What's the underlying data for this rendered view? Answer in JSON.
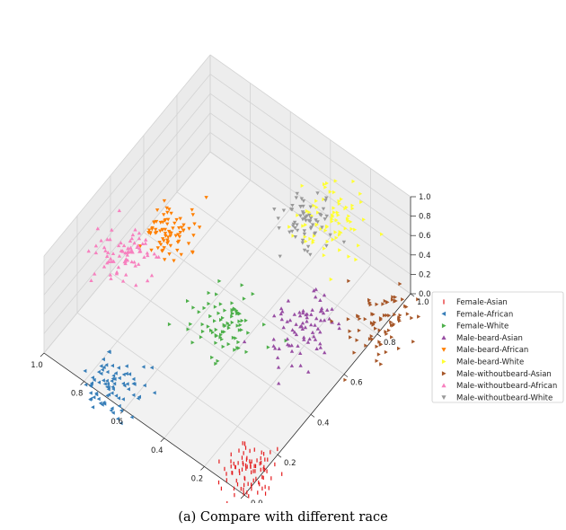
{
  "caption": "(a) Compare with different race",
  "chart_data": {
    "type": "scatter",
    "projection": "3d",
    "xlim": [
      0,
      1
    ],
    "ylim": [
      0,
      1
    ],
    "zlim": [
      0,
      1
    ],
    "x_ticks": [
      "0.0",
      "0.2",
      "0.4",
      "0.6",
      "0.8",
      "1.0"
    ],
    "y_ticks": [
      "0.0",
      "0.2",
      "0.4",
      "0.6",
      "0.8",
      "1.0"
    ],
    "z_ticks": [
      "0.0",
      "0.2",
      "0.4",
      "0.6",
      "0.8",
      "1.0"
    ],
    "legend_position": "right",
    "series": [
      {
        "name": "Female-Asian",
        "color": "#e41a1c",
        "marker": "tick",
        "center": [
          0.05,
          0.08
        ],
        "spread": 0.1,
        "count": 90
      },
      {
        "name": "Female-African",
        "color": "#377eb8",
        "marker": "triangle-left",
        "center": [
          0.7,
          0.05
        ],
        "spread": 0.12,
        "count": 80
      },
      {
        "name": "Female-White",
        "color": "#4daf4a",
        "marker": "triangle-right",
        "center": [
          0.5,
          0.5
        ],
        "spread": 0.12,
        "count": 80
      },
      {
        "name": "Male-beard-Asian",
        "color": "#984ea3",
        "marker": "triangle-up",
        "center": [
          0.25,
          0.65
        ],
        "spread": 0.12,
        "count": 80
      },
      {
        "name": "Male-beard-African",
        "color": "#ff7f00",
        "marker": "triangle-down",
        "center": [
          0.92,
          0.65
        ],
        "spread": 0.11,
        "count": 80
      },
      {
        "name": "Male-beard-White",
        "color": "#ffff33",
        "marker": "triangle-right",
        "center": [
          0.45,
          1.05
        ],
        "spread": 0.13,
        "count": 75
      },
      {
        "name": "Male-withoutbeard-Asian",
        "color": "#a65628",
        "marker": "triangle-right",
        "center": [
          0.02,
          0.85
        ],
        "spread": 0.12,
        "count": 75
      },
      {
        "name": "Male-withoutbeard-African",
        "color": "#f781bf",
        "marker": "triangle-up",
        "center": [
          1.0,
          0.48
        ],
        "spread": 0.12,
        "count": 80
      },
      {
        "name": "Male-withoutbeard-White",
        "color": "#999999",
        "marker": "triangle-down",
        "center": [
          0.52,
          1.0
        ],
        "spread": 0.11,
        "count": 65
      }
    ]
  }
}
